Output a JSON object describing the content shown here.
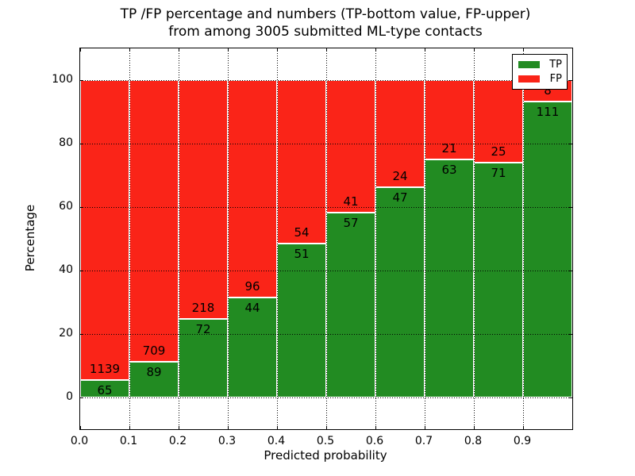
{
  "chart_data": {
    "type": "bar",
    "stacked": true,
    "normalized_to_percent": true,
    "title": "TP /FP percentage and numbers (TP-bottom value, FP-upper)\nfrom among 3005 submitted ML-type contacts",
    "title_lines": [
      "TP /FP percentage and numbers (TP-bottom value, FP-upper)",
      "from among 3005 submitted ML-type contacts"
    ],
    "xlabel": "Predicted probability",
    "ylabel": "Percentage",
    "xlim": [
      0,
      1.0
    ],
    "ylim": [
      -10,
      110
    ],
    "x_ticks": [
      "0.0",
      "0.1",
      "0.2",
      "0.3",
      "0.4",
      "0.5",
      "0.6",
      "0.7",
      "0.8",
      "0.9"
    ],
    "y_ticks": [
      "0",
      "20",
      "40",
      "60",
      "80",
      "100"
    ],
    "grid": "dotted, both axes, drawn over bars",
    "total_contacts": 3005,
    "legend": {
      "position": "upper right",
      "entries": [
        {
          "label": "TP",
          "color": "#228b22"
        },
        {
          "label": "FP",
          "color": "#fa2418"
        }
      ]
    },
    "bars": [
      {
        "bin_start": 0.0,
        "bin_end": 0.1,
        "tp_count": 65,
        "fp_count": 1139,
        "tp_percent": 5.4
      },
      {
        "bin_start": 0.1,
        "bin_end": 0.2,
        "tp_count": 89,
        "fp_count": 709,
        "tp_percent": 11.15
      },
      {
        "bin_start": 0.2,
        "bin_end": 0.3,
        "tp_count": 72,
        "fp_count": 218,
        "tp_percent": 24.83
      },
      {
        "bin_start": 0.3,
        "bin_end": 0.4,
        "tp_count": 44,
        "fp_count": 96,
        "tp_percent": 31.43
      },
      {
        "bin_start": 0.4,
        "bin_end": 0.5,
        "tp_count": 51,
        "fp_count": 54,
        "tp_percent": 48.57
      },
      {
        "bin_start": 0.5,
        "bin_end": 0.6,
        "tp_count": 57,
        "fp_count": 41,
        "tp_percent": 58.16
      },
      {
        "bin_start": 0.6,
        "bin_end": 0.7,
        "tp_count": 47,
        "fp_count": 24,
        "tp_percent": 66.2
      },
      {
        "bin_start": 0.7,
        "bin_end": 0.8,
        "tp_count": 63,
        "fp_count": 21,
        "tp_percent": 75.0
      },
      {
        "bin_start": 0.8,
        "bin_end": 0.9,
        "tp_count": 71,
        "fp_count": 25,
        "tp_percent": 73.96
      },
      {
        "bin_start": 0.9,
        "bin_end": 1.0,
        "tp_count": 111,
        "fp_count": 8,
        "tp_percent": 93.28
      }
    ]
  }
}
